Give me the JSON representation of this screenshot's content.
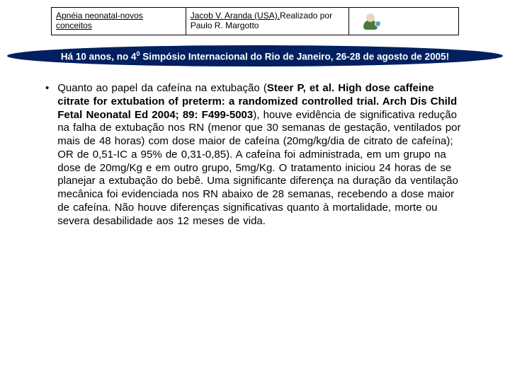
{
  "header": {
    "left_link": "Apnéia neonatal-novos conceitos",
    "mid_link": "Jacob V. Aranda (USA).",
    "mid_tail": "Realizado por Paulo R. Margotto"
  },
  "banner": {
    "pre": "Há 10 anos, no 4",
    "sup": "0",
    "post": " Simpósio Internacional do Rio de Janeiro, 26-28 de agosto de 2005!"
  },
  "bullet": {
    "lead": "Quanto ao papel da cafeína na extubação (",
    "bold": "Steer P, et al. High dose caffeine citrate for extubation of preterm: a randomized controlled trial. Arch Dis Child Fetal Neonatal Ed 2004; 89: F499-5003",
    "tail": "), houve evidência de significativa redução na falha de extubação nos RN (menor que 30 semanas de gestação, ventilados por mais de 48 horas) com dose maior de cafeína (20mg/kg/dia de citrato de cafeína); OR de 0,51-IC a 95% de 0,31-0,85). A cafeína foi administrada, em um grupo na dose de 20mg/Kg e em outro grupo, 5mg/Kg. O tratamento iniciou 24 horas de se planejar a extubação do bebê. Uma significante diferença na duração da ventilação mecânica foi evidenciada nos RN abaixo de 28 semanas, recebendo a dose maior de cafeína. Não houve diferenças significativas quanto à mortalidade, morte ou severa desabilidade aos 12 meses de vida."
  },
  "style": {
    "banner_bg": "#002060",
    "banner_fg": "#ffffff",
    "body_font_size": 15,
    "header_font_size": 12
  }
}
